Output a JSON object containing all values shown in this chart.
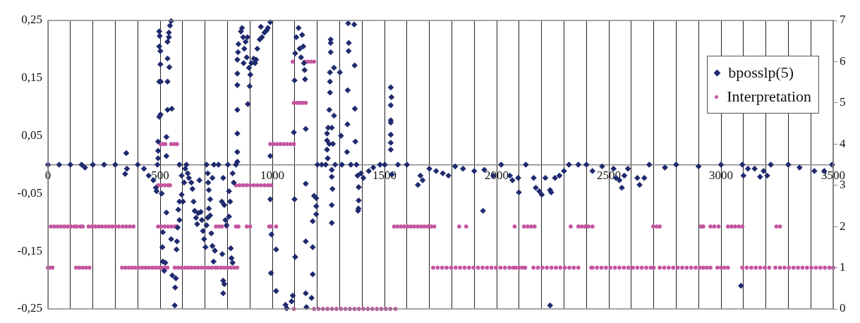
{
  "chart_data": {
    "type": "scatter",
    "legend": "top right",
    "grid": "x",
    "xlim": [
      0,
      3500
    ],
    "xticks": [
      0,
      {
        "value": 100,
        "label": null
      },
      {
        "value": 200,
        "label": null
      },
      {
        "value": 300,
        "label": null
      },
      {
        "value": 400,
        "label": null
      },
      500,
      {
        "value": 600,
        "label": null
      },
      {
        "value": 700,
        "label": null
      },
      {
        "value": 800,
        "label": null
      },
      {
        "value": 900,
        "label": null
      },
      1000,
      {
        "value": 1100,
        "label": null
      },
      {
        "value": 1200,
        "label": null
      },
      {
        "value": 1300,
        "label": null
      },
      {
        "value": 1400,
        "label": null
      },
      1500,
      {
        "value": 1600,
        "label": null
      },
      {
        "value": 1700,
        "label": null
      },
      {
        "value": 1800,
        "label": null
      },
      {
        "value": 1900,
        "label": null
      },
      2000,
      {
        "value": 2100,
        "label": null
      },
      {
        "value": 2200,
        "label": null
      },
      {
        "value": 2300,
        "label": null
      },
      {
        "value": 2400,
        "label": null
      },
      2500,
      {
        "value": 2600,
        "label": null
      },
      {
        "value": 2700,
        "label": null
      },
      {
        "value": 2800,
        "label": null
      },
      {
        "value": 2900,
        "label": null
      },
      3000,
      {
        "value": 3100,
        "label": null
      },
      {
        "value": 3200,
        "label": null
      },
      {
        "value": 3300,
        "label": null
      },
      {
        "value": 3400,
        "label": null
      },
      3500
    ],
    "ylim": [
      -0.25,
      0.25
    ],
    "yticks": [
      {
        "value": -0.25,
        "label": "-0,25"
      },
      {
        "value": -0.15,
        "label": "-0,15"
      },
      {
        "value": -0.05,
        "label": "-0,05"
      },
      {
        "value": 0.05,
        "label": "0,05"
      },
      {
        "value": 0.15,
        "label": "0,15"
      },
      {
        "value": 0.25,
        "label": "0,25"
      }
    ],
    "y2lim": [
      0,
      7
    ],
    "y2ticks": [
      0,
      1,
      2,
      3,
      4,
      5,
      6,
      7
    ],
    "series": [
      {
        "name": "bposslp(5)",
        "color": "#1f2a6e",
        "marker": "diamond",
        "x": [
          0,
          50,
          100,
          150,
          165,
          200,
          250,
          300,
          344,
          349,
          352,
          400,
          428,
          449,
          470,
          481,
          484,
          488,
          491,
          491,
          491,
          496,
          502,
          496,
          503,
          501,
          501,
          496,
          496,
          498,
          507,
          512,
          510,
          512,
          518,
          523,
          528,
          528,
          528,
          533,
          552,
          533,
          533,
          533,
          539,
          544,
          549,
          541,
          539,
          554,
          565,
          570,
          567,
          549,
          575,
          573,
          581,
          586,
          586,
          617,
          596,
          607,
          612,
          623,
          628,
          596,
          602,
          586,
          578,
          639,
          644,
          649,
          654,
          660,
          665,
          670,
          675,
          681,
          686,
          691,
          696,
          702,
          707,
          712,
          717,
          723,
          728,
          733,
          738,
          744,
          707,
          712,
          714,
          717,
          723,
          733,
          740,
          760,
          775,
          781,
          786,
          791,
          796,
          777,
          781,
          781,
          786,
          802,
          807,
          812,
          807,
          815,
          818,
          823,
          823,
          828,
          838,
          844,
          844,
          844,
          844,
          844,
          844,
          844,
          847,
          849,
          860,
          865,
          870,
          872,
          875,
          881,
          886,
          889,
          891,
          896,
          899,
          902,
          907,
          917,
          923,
          928,
          933,
          944,
          949,
          954,
          965,
          975,
          980,
          991,
          991,
          991,
          996,
          994,
          1017,
          1017,
          1059,
          1064,
          1086,
          1091,
          1096,
          1099,
          1099,
          1102,
          1102,
          1107,
          1117,
          1122,
          1128,
          1133,
          1138,
          1141,
          1144,
          1146,
          1149,
          1149,
          1149,
          1149,
          1152,
          1175,
          1180,
          1180,
          1180,
          1186,
          1196,
          1196,
          1196,
          1201,
          1220,
          1238,
          1244,
          1244,
          1244,
          1247,
          1249,
          1254,
          1260,
          1260,
          1260,
          1257,
          1257,
          1257,
          1254,
          1265,
          1270,
          1275,
          1275,
          1265,
          1265,
          1268,
          1265,
          1265,
          1280,
          1301,
          1306,
          1310,
          1333,
          1335,
          1338,
          1341,
          1340,
          1336,
          1350,
          1365,
          1367,
          1368,
          1370,
          1375,
          1380,
          1385,
          1385,
          1384,
          1382,
          1395,
          1406,
          1430,
          1450,
          1480,
          1501,
          1528,
          1531,
          1528,
          1528,
          1528,
          1528,
          1528,
          1528,
          1533,
          1560,
          1600,
          1649,
          1660,
          1670,
          1700,
          1730,
          1760,
          1785,
          1815,
          1850,
          1900,
          1939,
          1945,
          1985,
          2020,
          2059,
          2070,
          2096,
          2099,
          2130,
          2165,
          2174,
          2190,
          2201,
          2217,
          2238,
          2238,
          2243,
          2260,
          2280,
          2300,
          2322,
          2364,
          2400,
          2427,
          2470,
          2521,
          2532,
          2547,
          2558,
          2569,
          2585,
          2627,
          2637,
          2658,
          2680,
          2750,
          2800,
          2900,
          3000,
          3089,
          3095,
          3100,
          3120,
          3150,
          3174,
          3190,
          3206,
          3222,
          3300,
          3350,
          3416,
          3460,
          3495
        ],
        "values": [
          0,
          0,
          0,
          0,
          -0.005,
          0,
          0,
          0,
          -0.016,
          0.02,
          -0.007,
          0,
          -0.007,
          -0.019,
          -0.027,
          -0.04,
          -0.046,
          0,
          0.011,
          0.024,
          0.04,
          0.083,
          0.087,
          0.144,
          0.144,
          0.174,
          0.197,
          0.205,
          0.231,
          0.223,
          -0.05,
          -0.117,
          -0.143,
          -0.168,
          -0.184,
          -0.17,
          -0.083,
          0.048,
          0.015,
          0.095,
          0.097,
          0.144,
          0.184,
          0.213,
          0.229,
          0.241,
          0.249,
          0.169,
          0.221,
          -0.192,
          -0.244,
          -0.197,
          -0.213,
          -0.129,
          -0.133,
          -0.147,
          -0.078,
          -0.064,
          0,
          0,
          -0.019,
          -0.031,
          -0.007,
          -0.015,
          -0.023,
          -0.052,
          -0.064,
          -0.096,
          -0.109,
          -0.031,
          -0.042,
          -0.064,
          -0.08,
          -0.092,
          -0.103,
          -0.084,
          -0.027,
          -0.082,
          -0.096,
          -0.115,
          -0.129,
          -0.143,
          -0.105,
          -0.092,
          -0.076,
          -0.088,
          -0.119,
          -0.141,
          -0.168,
          -0.149,
          0,
          -0.015,
          -0.031,
          -0.044,
          -0.06,
          -0.023,
          0,
          0,
          -0.064,
          -0.023,
          -0.07,
          -0.096,
          -0.105,
          -0.155,
          -0.201,
          -0.223,
          -0.207,
          0,
          -0.046,
          -0.064,
          -0.09,
          -0.145,
          -0.162,
          -0.17,
          -0.015,
          -0.031,
          0,
          0.005,
          0.022,
          0.054,
          0.095,
          0.138,
          0.158,
          0.182,
          0.195,
          0.209,
          0.231,
          0.237,
          0.221,
          0.176,
          0.201,
          0.213,
          0.186,
          0.221,
          0.105,
          0.168,
          0.136,
          0.156,
          0.176,
          0.184,
          0.176,
          0.182,
          0.201,
          0.217,
          0.239,
          0.221,
          0.229,
          0.233,
          0.237,
          0.247,
          0.015,
          -0.06,
          -0.121,
          -0.188,
          -0.147,
          -0.219,
          -0.243,
          -0.249,
          -0.237,
          -0.227,
          0.056,
          0.146,
          -0.06,
          -0.16,
          0.193,
          0.221,
          0.237,
          0.201,
          0.186,
          0.225,
          0.205,
          0.176,
          0.164,
          0.148,
          0.062,
          -0.033,
          -0.133,
          -0.223,
          -0.247,
          -0.231,
          -0.098,
          -0.143,
          -0.19,
          -0.054,
          -0.058,
          -0.072,
          -0.086,
          0,
          0,
          0,
          0.054,
          0.042,
          0.026,
          0.011,
          0.064,
          0.036,
          0.217,
          0.211,
          0.195,
          0.16,
          0.144,
          0.125,
          0.095,
          0.064,
          0.036,
          0.168,
          0.085,
          -0.009,
          -0.021,
          -0.042,
          -0.07,
          -0.101,
          0,
          0.16,
          0.05,
          0,
          0.022,
          0.07,
          0.245,
          0.211,
          0.197,
          0.129,
          0,
          0.243,
          0.172,
          0.097,
          0.04,
          0,
          -0.019,
          -0.039,
          -0.062,
          -0.076,
          -0.08,
          -0.015,
          -0.023,
          -0.011,
          -0.005,
          0,
          0,
          0.134,
          0.117,
          0.103,
          0.077,
          0.073,
          0.052,
          0.038,
          0.026,
          -0.017,
          0,
          0,
          -0.035,
          -0.019,
          -0.027,
          -0.007,
          -0.011,
          -0.015,
          -0.019,
          -0.003,
          -0.007,
          -0.011,
          -0.08,
          -0.009,
          -0.019,
          0,
          -0.019,
          -0.027,
          -0.023,
          -0.048,
          0,
          -0.023,
          -0.04,
          -0.046,
          -0.052,
          -0.023,
          -0.044,
          -0.244,
          -0.048,
          -0.023,
          -0.019,
          -0.011,
          0,
          0,
          0,
          -0.011,
          -0.003,
          -0.007,
          -0.023,
          -0.027,
          -0.04,
          -0.019,
          -0.007,
          -0.023,
          -0.035,
          -0.023,
          0,
          -0.005,
          0,
          -0.003,
          0,
          -0.21,
          0,
          -0.019,
          -0.007,
          -0.007,
          -0.021,
          -0.011,
          -0.019,
          0,
          0,
          -0.005,
          -0.011,
          -0.011,
          0
        ]
      },
      {
        "name": "Interpretation",
        "color": "#c455a0",
        "marker": "circle",
        "axis": "y2",
        "x": [
          0,
          10,
          20,
          125,
          140,
          155,
          170,
          185,
          330,
          345,
          360,
          375,
          390,
          405,
          420,
          435,
          450,
          465,
          480,
          495,
          507,
          520,
          533,
          565,
          580,
          595,
          610,
          625,
          640,
          655,
          670,
          685,
          700,
          715,
          730,
          745,
          755,
          770,
          785,
          800,
          815,
          830,
          844,
          1717,
          1737,
          1757,
          1777,
          1797,
          1817,
          1837,
          1857,
          1877,
          1897,
          1917,
          1937,
          1957,
          1977,
          1997,
          2017,
          2037,
          2057,
          2074,
          2085,
          2100,
          2115,
          2127,
          2164,
          2184,
          2204,
          2224,
          2244,
          2264,
          2284,
          2304,
          2324,
          2344,
          2364,
          2422,
          2427,
          2447,
          2467,
          2487,
          2507,
          2527,
          2547,
          2567,
          2587,
          2607,
          2627,
          2647,
          2667,
          2687,
          2700,
          2727,
          2747,
          2767,
          2787,
          2807,
          2827,
          2847,
          2867,
          2887,
          2906,
          2921,
          2937,
          2953,
          2984,
          3000,
          3015,
          3031,
          3095,
          3115,
          3135,
          3155,
          3175,
          3195,
          3215,
          3242,
          3263,
          3283,
          3303,
          3323,
          3343,
          3363,
          3383,
          3403,
          3423,
          3443,
          3463,
          3483,
          3500,
          13,
          28,
          43,
          58,
          73,
          88,
          103,
          118,
          128,
          144,
          155,
          181,
          196,
          211,
          226,
          241,
          256,
          271,
          286,
          301,
          316,
          333,
          349,
          365,
          381,
          491,
          505,
          520,
          535,
          550,
          565,
          575,
          749,
          762,
          775,
          796,
          838,
          849,
          886,
          901,
          986,
          996,
          1017,
          1543,
          1558,
          1573,
          1588,
          1603,
          1618,
          1633,
          1648,
          1663,
          1678,
          1693,
          1708,
          1722,
          1833,
          1864,
          2080,
          2122,
          2138,
          2154,
          2169,
          2330,
          2364,
          2379,
          2394,
          2409,
          2427,
          2698,
          2713,
          2727,
          2911,
          2921,
          2953,
          2970,
          2989,
          3031,
          3047,
          3063,
          3079,
          3095,
          3247,
          3263,
          491,
          505,
          520,
          535,
          544,
          838,
          854,
          870,
          886,
          902,
          918,
          934,
          950,
          966,
          982,
          996,
          502,
          513,
          523,
          549,
          562,
          575,
          991,
          1006,
          1021,
          1036,
          1051,
          1066,
          1081,
          1096,
          1096,
          1110,
          1123,
          1136,
          1149,
          1091,
          1144,
          1158,
          1172,
          1186,
          1096,
          1186,
          1206,
          1226,
          1246,
          1266,
          1286,
          1306,
          1326,
          1346,
          1366,
          1386,
          1406,
          1426,
          1446,
          1466,
          1486,
          1506,
          1526,
          1549
        ],
        "values": [
          1,
          1,
          1,
          1,
          1,
          1,
          1,
          1,
          1,
          1,
          1,
          1,
          1,
          1,
          1,
          1,
          1,
          1,
          1,
          1,
          1,
          1,
          1,
          1,
          1,
          1,
          1,
          1,
          1,
          1,
          1,
          1,
          1,
          1,
          1,
          1,
          1,
          1,
          1,
          1,
          1,
          1,
          1,
          1,
          1,
          1,
          1,
          1,
          1,
          1,
          1,
          1,
          1,
          1,
          1,
          1,
          1,
          1,
          1,
          1,
          1,
          1,
          1,
          1,
          1,
          1,
          1,
          1,
          1,
          1,
          1,
          1,
          1,
          1,
          1,
          1,
          1,
          1,
          1,
          1,
          1,
          1,
          1,
          1,
          1,
          1,
          1,
          1,
          1,
          1,
          1,
          1,
          1,
          1,
          1,
          1,
          1,
          1,
          1,
          1,
          1,
          1,
          1,
          1,
          1,
          1,
          1,
          1,
          1,
          1,
          1,
          1,
          1,
          1,
          1,
          1,
          1,
          1,
          1,
          1,
          1,
          1,
          1,
          1,
          1,
          1,
          1,
          1,
          1,
          1,
          1,
          2,
          2,
          2,
          2,
          2,
          2,
          2,
          2,
          2,
          2,
          2,
          2,
          2,
          2,
          2,
          2,
          2,
          2,
          2,
          2,
          2,
          2,
          2,
          2,
          2,
          2,
          2,
          2,
          2,
          2,
          2,
          2,
          2,
          2,
          2,
          2,
          2,
          2,
          2,
          2,
          2,
          2,
          2,
          2,
          2,
          2,
          2,
          2,
          2,
          2,
          2,
          2,
          2,
          2,
          2,
          2,
          2,
          2,
          2,
          2,
          2,
          2,
          2,
          2,
          2,
          2,
          2,
          2,
          2,
          2,
          2,
          2,
          2,
          2,
          2,
          2,
          2,
          2,
          2,
          2,
          2,
          2,
          2,
          2,
          3,
          3,
          3,
          3,
          3,
          3,
          3,
          3,
          3,
          3,
          3,
          3,
          3,
          3,
          3,
          3,
          4,
          4,
          4,
          4,
          4,
          4,
          4,
          4,
          4,
          4,
          4,
          4,
          4,
          4,
          5,
          5,
          5,
          5,
          5,
          6,
          6,
          6,
          6,
          6,
          0,
          0,
          0,
          0,
          0,
          0,
          0,
          0,
          0,
          0,
          0,
          0,
          0,
          0,
          0,
          0,
          0,
          0,
          0,
          0
        ]
      }
    ]
  }
}
